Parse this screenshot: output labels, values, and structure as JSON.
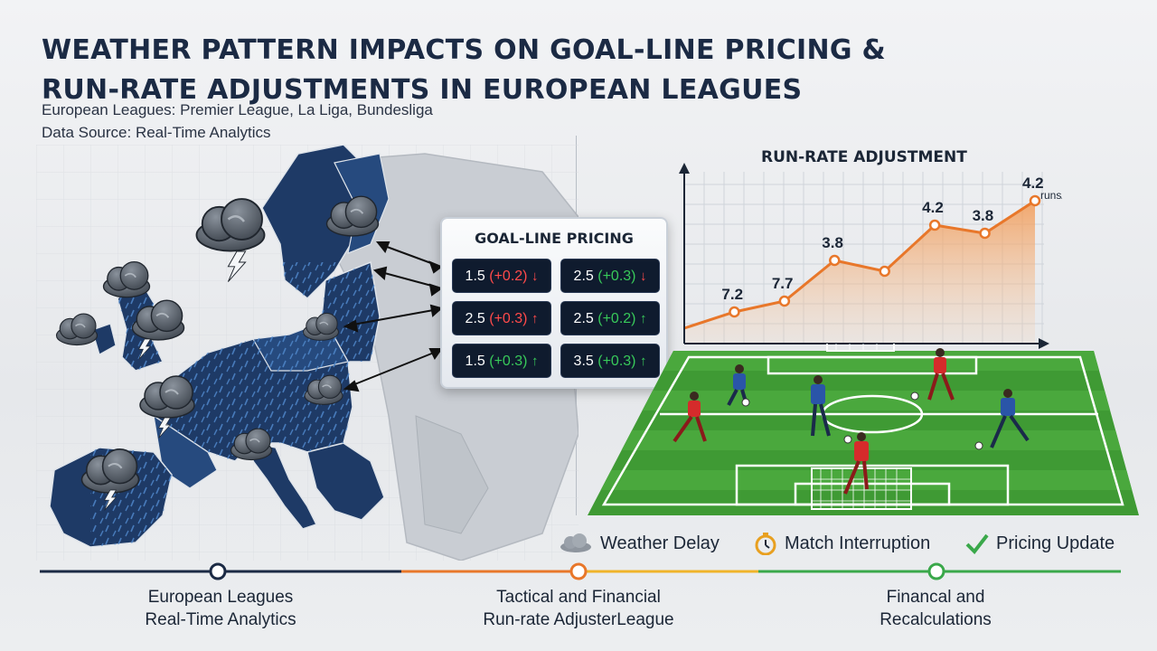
{
  "header": {
    "title_line1": "WEATHER PATTERN IMPACTS ON GOAL-LINE PRICING &",
    "title_line2": "RUN-RATE ADJUSTMENTS IN EUROPEAN LEAGUES",
    "subtitle1": "European Leagues: Premier League, La Liga, Bundesliga",
    "subtitle2": "Data Source: Real-Time Analytics"
  },
  "pricing": {
    "title": "GOAL-LINE PRICING",
    "cells": [
      {
        "line": "1.5",
        "adj": "(+0.2)",
        "dir": "down"
      },
      {
        "line": "2.5",
        "adj": "(+0.3)",
        "dir": "down"
      },
      {
        "line": "2.5",
        "adj": "(+0.3)",
        "dir": "up"
      },
      {
        "line": "2.5",
        "adj": "(+0.2)",
        "dir": "up"
      },
      {
        "line": "1.5",
        "adj": "(+0.3)",
        "dir": "up"
      },
      {
        "line": "3.5",
        "adj": "(+0.3)",
        "dir": "up"
      }
    ],
    "arrow_up": "↑",
    "arrow_down": "↓"
  },
  "chart_data": {
    "type": "line",
    "title": "RUN-RATE ADJUSTMENT",
    "x": [
      1,
      2,
      3,
      4,
      5,
      6,
      7,
      8
    ],
    "series": [
      {
        "values": [
          6.8,
          7.2,
          7.7,
          3.8,
          7.0,
          4.2,
          3.8,
          4.2
        ],
        "labels": [
          "",
          "7.2",
          "7.7",
          "3.8",
          "",
          "4.2",
          "3.8",
          "4.2"
        ]
      }
    ],
    "end_unit": "runs/over",
    "color": "#e8772a",
    "grid": true
  },
  "legend": {
    "weather_delay": "Weather Delay",
    "match_interruption": "Match Interruption",
    "pricing_update": "Pricing Update"
  },
  "timeline": {
    "stage1_line1": "European Leagues",
    "stage1_line2": "Real-Time Analytics",
    "stage2_line1": "Tactical and Financial",
    "stage2_line2": "Run-rate AdjusterLeague",
    "stage3_line1": "Financal and",
    "stage3_line2": "Recalculations",
    "colors": [
      "#1b2a44",
      "#e8772a",
      "#f0b42a",
      "#3aa84a"
    ]
  },
  "colors": {
    "map_land": "#1e3a66",
    "map_other": "#c9cdd3",
    "pitch": "#3f9a34",
    "team_red": "#d52b2b",
    "team_blue": "#2a55a8"
  }
}
